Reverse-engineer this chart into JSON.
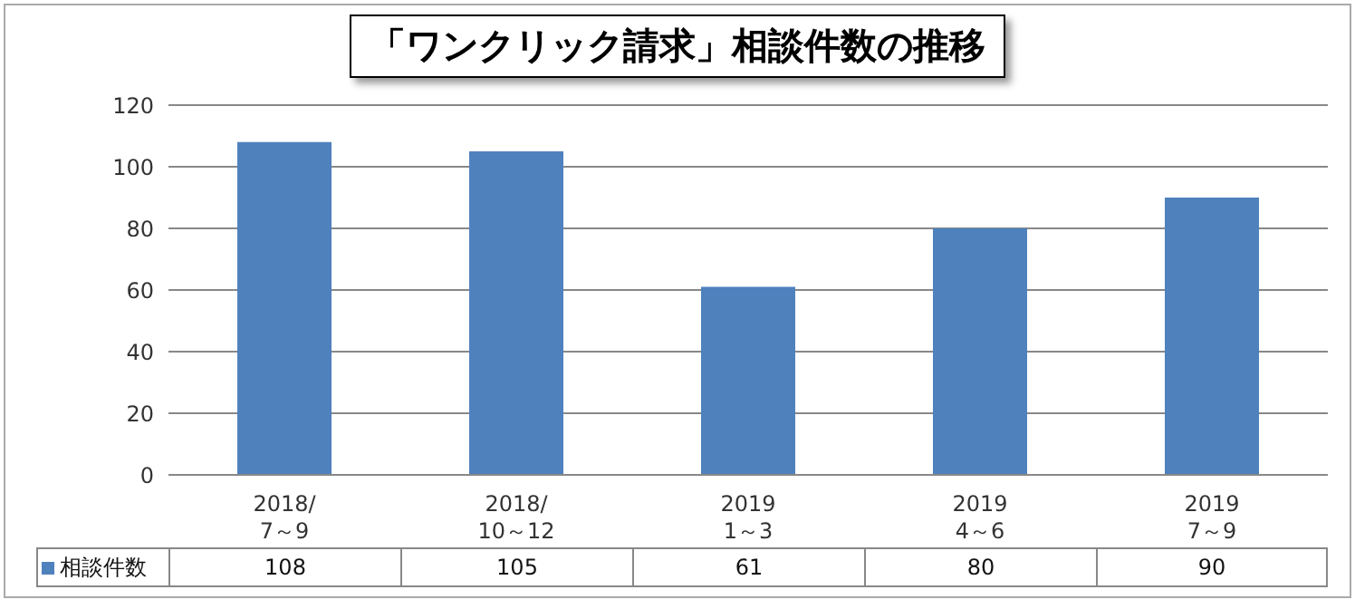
{
  "chart_data": {
    "type": "bar",
    "title": "「ワンクリック請求」相談件数の推移",
    "categories": [
      "2018/\n7～9",
      "2018/\n10～12",
      "2019\n1～3",
      "2019\n4～6",
      "2019\n7～9"
    ],
    "series": [
      {
        "name": "相談件数",
        "color": "#4f81bd",
        "values": [
          108,
          105,
          61,
          80,
          90
        ]
      }
    ],
    "ylim": [
      0,
      120
    ],
    "yticks": [
      0,
      20,
      40,
      60,
      80,
      100,
      120
    ],
    "grid": "y",
    "legend": "bottom left",
    "data_labels": true
  }
}
